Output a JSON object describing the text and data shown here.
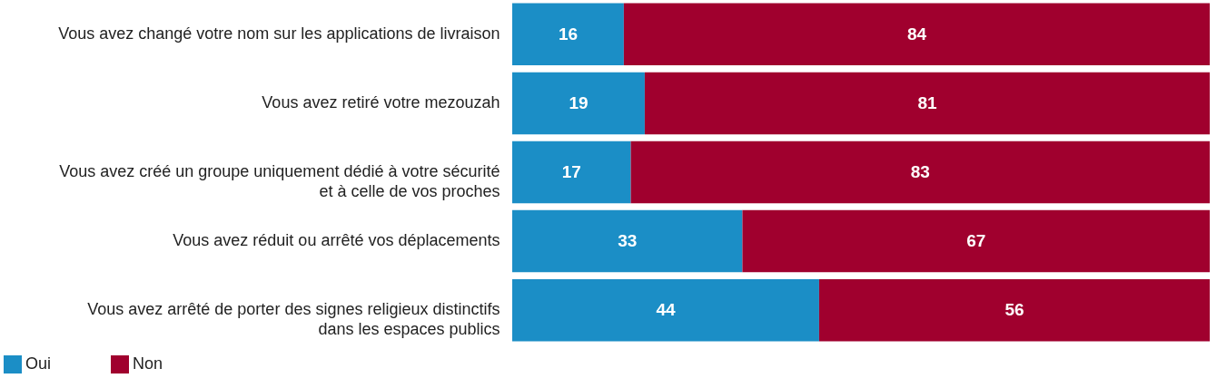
{
  "chart_data": {
    "type": "bar",
    "orientation": "horizontal",
    "stacked": true,
    "data_labels": true,
    "legend": "bottom left",
    "categories": [
      "Vous avez changé votre nom sur les applications de livraison",
      "Vous avez retiré votre mezouzah",
      "Vous avez créé un groupe uniquement dédié à votre sécurité et à celle de vos proches",
      "Vous avez réduit ou arrêté vos déplacements",
      "Vous avez arrêté de porter des signes religieux distinctifs dans les espaces publics"
    ],
    "series": [
      {
        "name": "Oui",
        "color": "#1b8ec6",
        "values": [
          16,
          19,
          17,
          33,
          44
        ]
      },
      {
        "name": "Non",
        "color": "#a0002e",
        "values": [
          84,
          81,
          83,
          67,
          56
        ]
      }
    ]
  }
}
